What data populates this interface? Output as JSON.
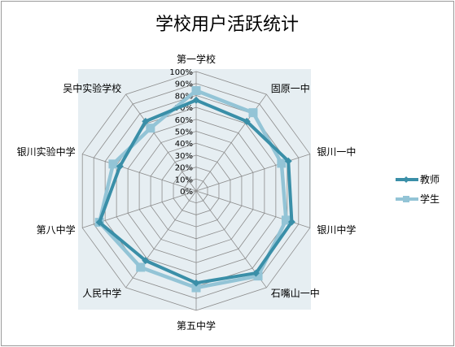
{
  "chart_data": {
    "type": "radar",
    "title": "学校用户活跃统计",
    "categories": [
      "第一学校",
      "固原一中",
      "银川一中",
      "银川中学",
      "石嘴山一中",
      "第五中学",
      "人民中学",
      "第八中学",
      "银川实验中学",
      "吴中实验学校"
    ],
    "rlim": [
      0,
      100
    ],
    "ticks": [
      "0%",
      "10%",
      "20%",
      "30%",
      "40%",
      "50%",
      "60%",
      "70%",
      "80%",
      "90%",
      "100%"
    ],
    "grid": true,
    "legend": "right",
    "series": [
      {
        "name": "教师",
        "values": [
          76,
          72,
          81,
          84,
          85,
          77,
          72,
          85,
          67,
          72
        ],
        "color": "#3a8fa8"
      },
      {
        "name": "学生",
        "values": [
          84,
          81,
          75,
          79,
          88,
          81,
          79,
          85,
          73,
          65
        ],
        "color": "#93c4d6"
      }
    ],
    "plot_bg": "#e6eef2"
  }
}
